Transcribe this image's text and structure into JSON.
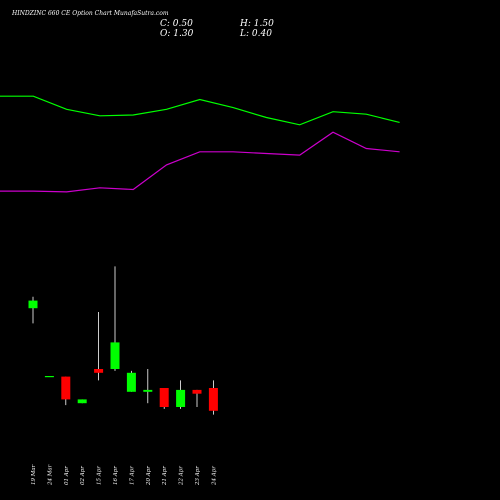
{
  "chart_data": {
    "type": "candlestick",
    "title": "HINDZINC 660  CE Option  Chart MunafaSutra.com",
    "ohlc_readout": {
      "c_label": "C:",
      "c_value": "0.50",
      "h_label": "H:",
      "h_value": "1.50",
      "o_label": "O:",
      "o_value": "1.30",
      "l_label": "L:",
      "l_value": "0.40"
    },
    "candles": [
      {
        "date": "19 Mar",
        "open": 4.1,
        "high": 4.4,
        "low": 3.7,
        "close": 4.3
      },
      {
        "date": "24 Mar",
        "open": 2.3,
        "high": 2.3,
        "low": 2.3,
        "close": 2.3
      },
      {
        "date": "01 Apr",
        "open": 2.3,
        "high": 2.3,
        "low": 1.55,
        "close": 1.7
      },
      {
        "date": "02 Apr",
        "open": 1.6,
        "high": 1.7,
        "low": 1.6,
        "close": 1.7
      },
      {
        "date": "15 Apr",
        "open": 2.5,
        "high": 4.0,
        "low": 2.2,
        "close": 2.4
      },
      {
        "date": "16 Apr",
        "open": 2.5,
        "high": 5.2,
        "low": 2.45,
        "close": 3.2
      },
      {
        "date": "17 Apr",
        "open": 1.9,
        "high": 2.45,
        "low": 1.9,
        "close": 2.4
      },
      {
        "date": "20 Apr",
        "open": 1.9,
        "high": 2.5,
        "low": 1.6,
        "close": 1.95
      },
      {
        "date": "21 Apr",
        "open": 2.0,
        "high": 2.0,
        "low": 1.45,
        "close": 1.5
      },
      {
        "date": "22 Apr",
        "open": 1.5,
        "high": 2.2,
        "low": 1.45,
        "close": 1.95
      },
      {
        "date": "23 Apr",
        "open": 1.95,
        "high": 1.95,
        "low": 1.5,
        "close": 1.85
      },
      {
        "date": "24 Apr",
        "open": 2.0,
        "high": 2.2,
        "low": 1.3,
        "close": 1.4
      }
    ],
    "price_ylim": [
      0.5,
      5.5
    ],
    "green_line": [
      94,
      94,
      86,
      82,
      82.5,
      86,
      92,
      87,
      81,
      76.5,
      84.5,
      83,
      78
    ],
    "magenta_line": [
      36,
      36,
      35.5,
      38,
      37,
      52,
      60,
      60,
      59,
      58,
      72,
      62,
      60
    ],
    "indicator_ylim": [
      0,
      110
    ],
    "colors": {
      "background": "#000000",
      "bullish": "#00ff00",
      "bearish": "#ff0000",
      "wick": "#ffffff",
      "green_line": "#00ff00",
      "magenta_line": "#cc00cc",
      "text": "#ffffff"
    }
  }
}
